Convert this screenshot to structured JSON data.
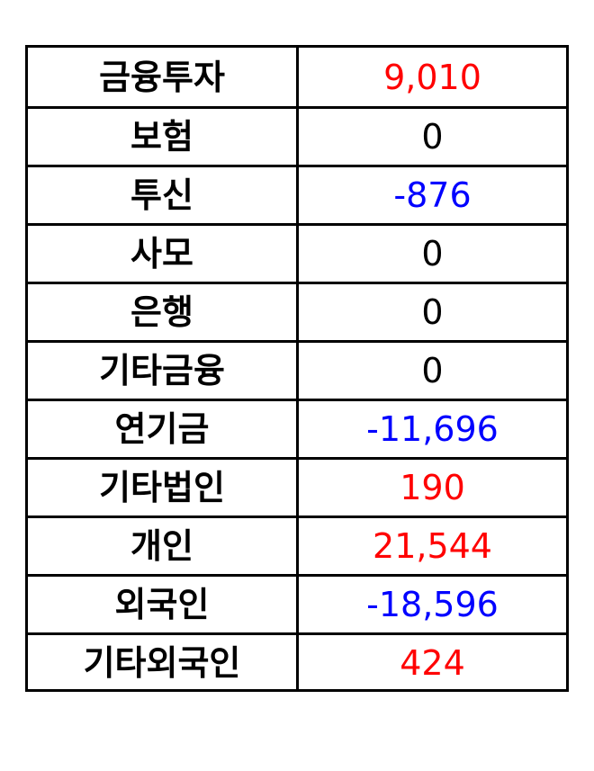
{
  "rows": [
    {
      "label": "금융투자",
      "value": "9,010",
      "sign": "pos"
    },
    {
      "label": "보험",
      "value": "0",
      "sign": "zero"
    },
    {
      "label": "투신",
      "value": "-876",
      "sign": "neg"
    },
    {
      "label": "사모",
      "value": "0",
      "sign": "zero"
    },
    {
      "label": "은행",
      "value": "0",
      "sign": "zero"
    },
    {
      "label": "기타금융",
      "value": "0",
      "sign": "zero"
    },
    {
      "label": "연기금",
      "value": "-11,696",
      "sign": "neg"
    },
    {
      "label": "기타법인",
      "value": "190",
      "sign": "pos"
    },
    {
      "label": "개인",
      "value": "21,544",
      "sign": "pos"
    },
    {
      "label": "외국인",
      "value": "-18,596",
      "sign": "neg"
    },
    {
      "label": "기타외국인",
      "value": "424",
      "sign": "pos"
    }
  ],
  "colors": {
    "positive": "#ff0000",
    "negative": "#0000ff",
    "zero": "#000000",
    "border": "#000000"
  }
}
